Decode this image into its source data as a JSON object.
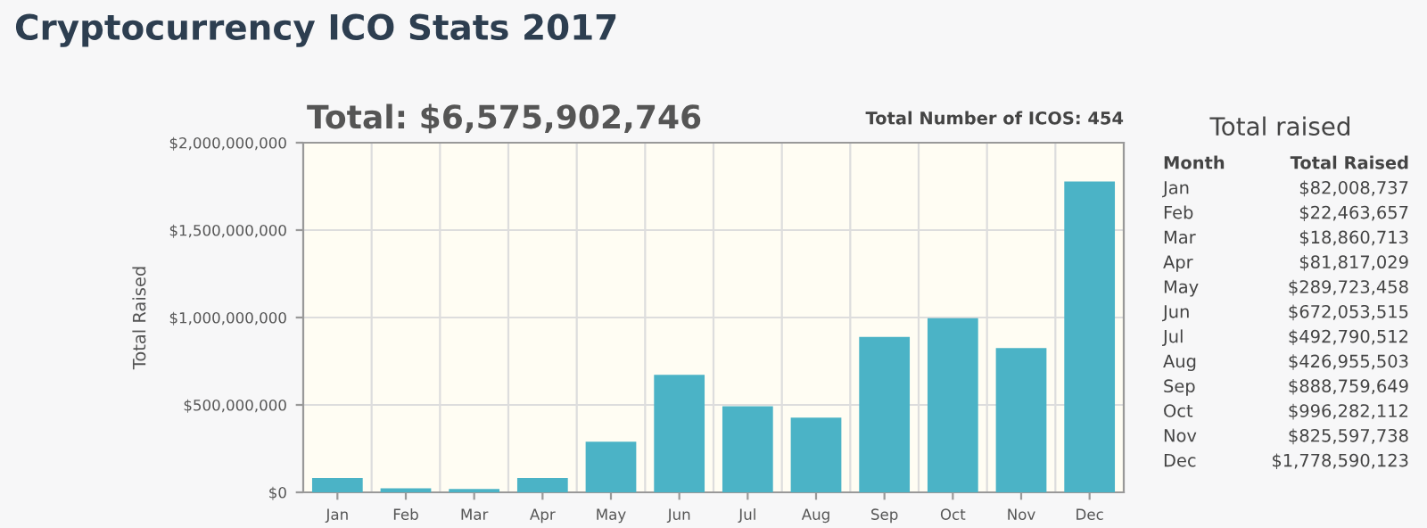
{
  "chart_data": {
    "type": "bar",
    "title": "Cryptocurrency ICO Stats 2017",
    "ylabel": "Total Raised",
    "categories": [
      "Jan",
      "Feb",
      "Mar",
      "Apr",
      "May",
      "Jun",
      "Jul",
      "Aug",
      "Sep",
      "Oct",
      "Nov",
      "Dec"
    ],
    "values": [
      82008737,
      22463657,
      18860713,
      81817029,
      289723458,
      672053515,
      492790512,
      426955503,
      888759649,
      996282112,
      825597738,
      1778590123
    ],
    "color": "#4bb3c6",
    "ylim": [
      0,
      2000000000
    ],
    "yticks": [
      {
        "value": 0,
        "label": "$0"
      },
      {
        "value": 500000000,
        "label": "$500,000,000"
      },
      {
        "value": 1000000000,
        "label": "$1,000,000,000"
      },
      {
        "value": 1500000000,
        "label": "$1,500,000,000"
      },
      {
        "value": 2000000000,
        "label": "$2,000,000,000"
      }
    ],
    "grid": true,
    "annotations": [
      "Total: $6,575,902,746",
      "Total Number of ICOS: 454",
      "Total raised",
      "Month",
      "Total Raised",
      "Jan",
      "$82,008,737",
      "Feb",
      "$22,463,657",
      "Mar",
      "$18,860,713",
      "Apr",
      "$81,817,029",
      "May",
      "$289,723,458",
      "Jun",
      "$672,053,515",
      "Jul",
      "$492,790,512",
      "Aug",
      "$426,955,503",
      "Sep",
      "$888,759,649",
      "Oct",
      "$996,282,112",
      "Nov",
      "$825,597,738",
      "Dec",
      "$1,778,590,123"
    ]
  }
}
